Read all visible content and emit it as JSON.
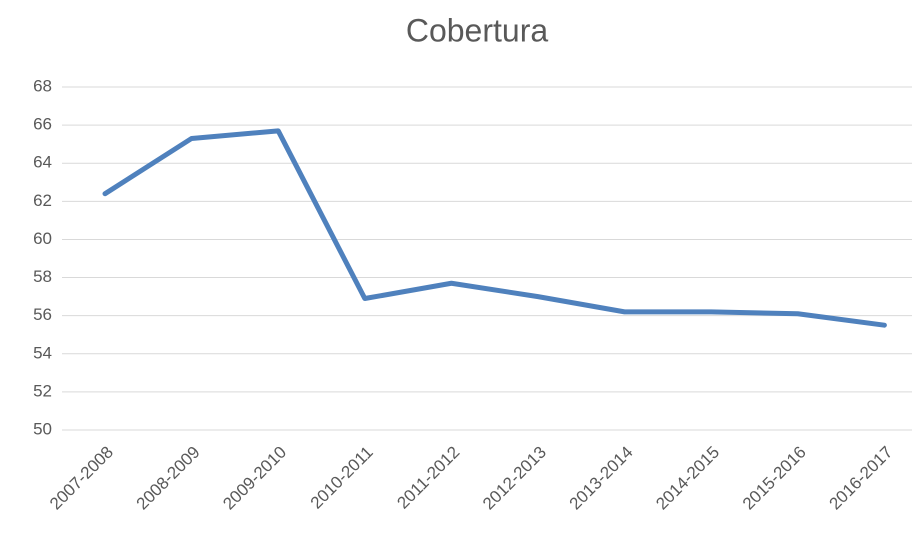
{
  "chart_data": {
    "type": "line",
    "title": "Cobertura",
    "categories": [
      "2007-2008",
      "2008-2009",
      "2009-2010",
      "2010-2011",
      "2011-2012",
      "2012-2013",
      "2013-2014",
      "2014-2015",
      "2015-2016",
      "2016-2017"
    ],
    "series": [
      {
        "name": "Cobertura",
        "color": "#4f81bd",
        "values": [
          62.4,
          65.3,
          65.7,
          56.9,
          57.7,
          57.0,
          56.2,
          56.2,
          56.1,
          55.5
        ]
      }
    ],
    "ylim": [
      50,
      68
    ],
    "yticks": [
      50,
      52,
      54,
      56,
      58,
      60,
      62,
      64,
      66,
      68
    ],
    "grid": true
  }
}
